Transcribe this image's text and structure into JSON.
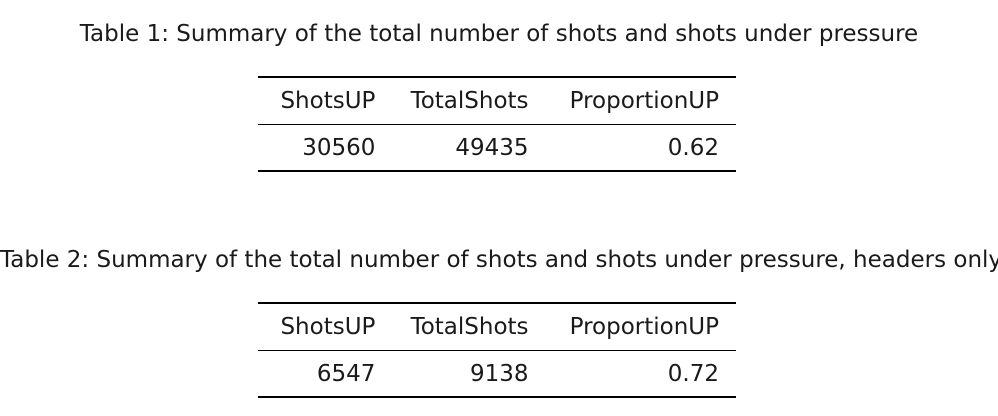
{
  "tables": [
    {
      "caption": "Table 1: Summary of the total number of shots and shots under pressure",
      "columns": [
        "ShotsUP",
        "TotalShots",
        "ProportionUP"
      ],
      "rows": [
        [
          "30560",
          "49435",
          "0.62"
        ]
      ]
    },
    {
      "caption": "Table 2: Summary of the total number of shots and shots under pressure, headers only",
      "columns": [
        "ShotsUP",
        "TotalShots",
        "ProportionUP"
      ],
      "rows": [
        [
          "6547",
          "9138",
          "0.72"
        ]
      ]
    }
  ]
}
